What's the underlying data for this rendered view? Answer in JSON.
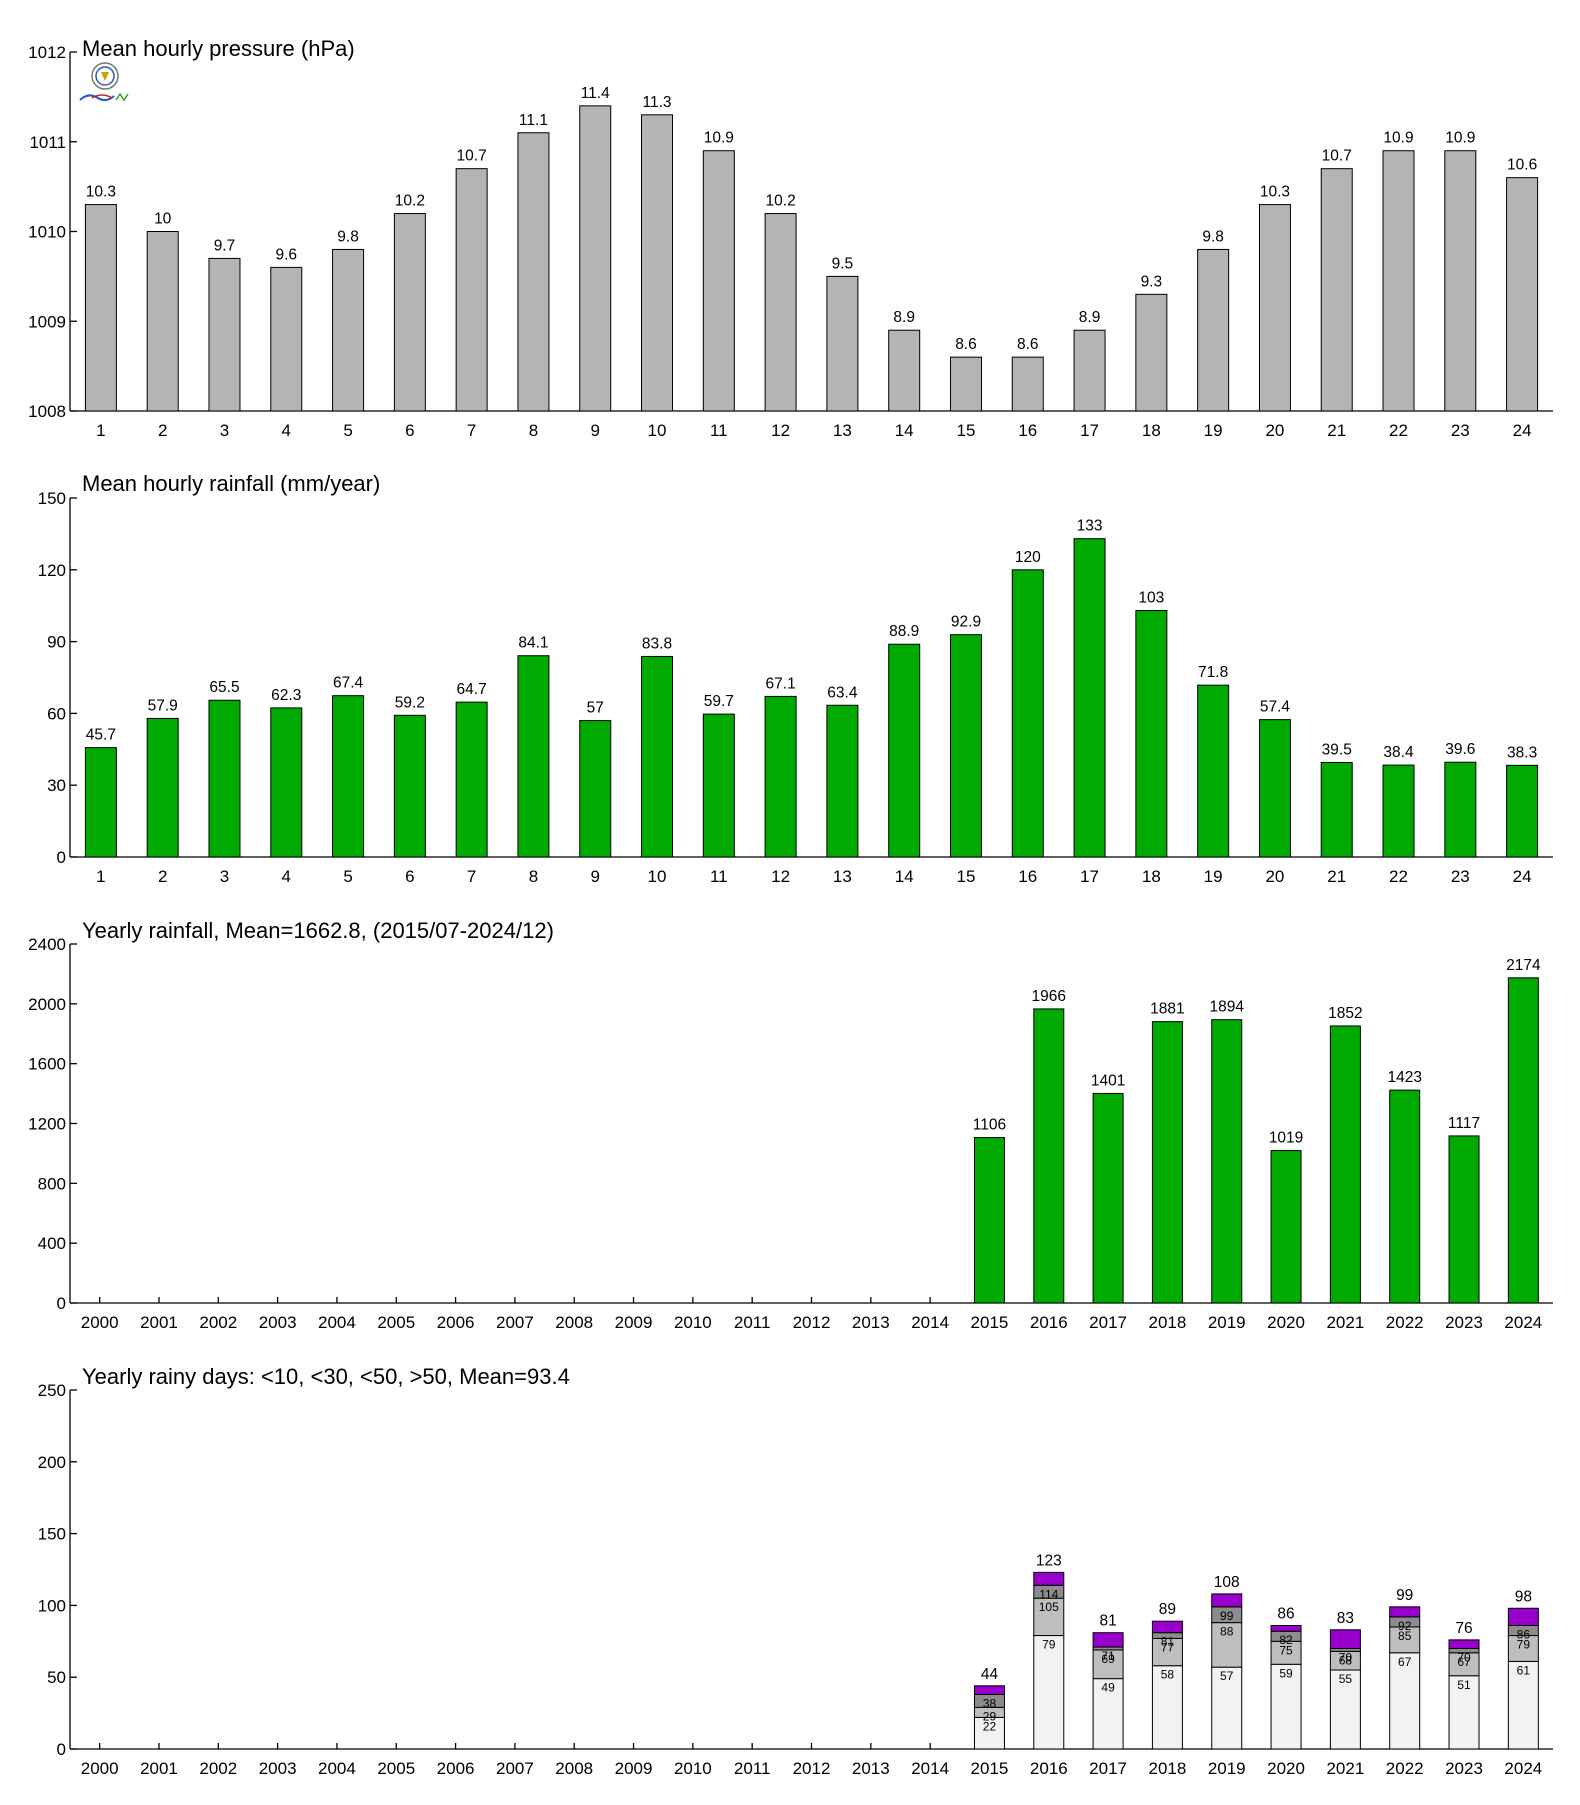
{
  "chart_data": [
    {
      "type": "bar",
      "title": "Mean hourly pressure (hPa)",
      "categories": [
        "1",
        "2",
        "3",
        "4",
        "5",
        "6",
        "7",
        "8",
        "9",
        "10",
        "11",
        "12",
        "13",
        "14",
        "15",
        "16",
        "17",
        "18",
        "19",
        "20",
        "21",
        "22",
        "23",
        "24"
      ],
      "values": [
        1010.3,
        1010.0,
        1009.7,
        1009.6,
        1009.8,
        1010.2,
        1010.7,
        1011.1,
        1011.4,
        1011.3,
        1010.9,
        1010.2,
        1009.5,
        1008.9,
        1008.6,
        1008.6,
        1008.9,
        1009.3,
        1009.8,
        1010.3,
        1010.7,
        1010.9,
        1010.9,
        1010.6
      ],
      "labels": [
        "10.3",
        "10",
        "9.7",
        "9.6",
        "9.8",
        "10.2",
        "10.7",
        "11.1",
        "11.4",
        "11.3",
        "10.9",
        "10.2",
        "9.5",
        "8.9",
        "8.6",
        "8.6",
        "8.9",
        "9.3",
        "9.8",
        "10.3",
        "10.7",
        "10.9",
        "10.9",
        "10.6"
      ],
      "ylim": [
        1008,
        1012
      ],
      "yticks": [
        "1008",
        "1009",
        "1010",
        "1011",
        "1012"
      ],
      "xlabel": "",
      "ylabel": "",
      "bar_color": "#b4b4b4",
      "grid": false
    },
    {
      "type": "bar",
      "title": "Mean hourly rainfall (mm/year)",
      "categories": [
        "1",
        "2",
        "3",
        "4",
        "5",
        "6",
        "7",
        "8",
        "9",
        "10",
        "11",
        "12",
        "13",
        "14",
        "15",
        "16",
        "17",
        "18",
        "19",
        "20",
        "21",
        "22",
        "23",
        "24"
      ],
      "values": [
        45.7,
        57.9,
        65.5,
        62.3,
        67.4,
        59.2,
        64.7,
        84.1,
        57,
        83.8,
        59.7,
        67.1,
        63.4,
        88.9,
        92.9,
        120,
        133,
        103,
        71.8,
        57.4,
        39.5,
        38.4,
        39.6,
        38.3
      ],
      "labels": [
        "45.7",
        "57.9",
        "65.5",
        "62.3",
        "67.4",
        "59.2",
        "64.7",
        "84.1",
        "57",
        "83.8",
        "59.7",
        "67.1",
        "63.4",
        "88.9",
        "92.9",
        "120",
        "133",
        "103",
        "71.8",
        "57.4",
        "39.5",
        "38.4",
        "39.6",
        "38.3"
      ],
      "ylim": [
        0,
        150
      ],
      "yticks": [
        "0",
        "30",
        "60",
        "90",
        "120",
        "150"
      ],
      "xlabel": "",
      "ylabel": "",
      "bar_color": "#00aa00",
      "grid": false
    },
    {
      "type": "bar",
      "title": "Yearly rainfall, Mean=1662.8, (2015/07-2024/12)",
      "categories": [
        "2000",
        "2001",
        "2002",
        "2003",
        "2004",
        "2005",
        "2006",
        "2007",
        "2008",
        "2009",
        "2010",
        "2011",
        "2012",
        "2013",
        "2014",
        "2015",
        "2016",
        "2017",
        "2018",
        "2019",
        "2020",
        "2021",
        "2022",
        "2023",
        "2024"
      ],
      "values": [
        null,
        null,
        null,
        null,
        null,
        null,
        null,
        null,
        null,
        null,
        null,
        null,
        null,
        null,
        null,
        1106,
        1966,
        1401,
        1881,
        1894,
        1019,
        1852,
        1423,
        1117,
        2174
      ],
      "labels": [
        "",
        "",
        "",
        "",
        "",
        "",
        "",
        "",
        "",
        "",
        "",
        "",
        "",
        "",
        "",
        "1106",
        "1966",
        "1401",
        "1881",
        "1894",
        "1019",
        "1852",
        "1423",
        "1117",
        "2174"
      ],
      "ylim": [
        0,
        2400
      ],
      "yticks": [
        "0",
        "400",
        "800",
        "1200",
        "1600",
        "2000",
        "2400"
      ],
      "xlabel": "",
      "ylabel": "",
      "bar_color": "#00aa00",
      "grid": false
    },
    {
      "type": "bar",
      "stacked": true,
      "title": "Yearly rainy days: <10, <30, <50, >50, Mean=93.4",
      "categories": [
        "2000",
        "2001",
        "2002",
        "2003",
        "2004",
        "2005",
        "2006",
        "2007",
        "2008",
        "2009",
        "2010",
        "2011",
        "2012",
        "2013",
        "2014",
        "2015",
        "2016",
        "2017",
        "2018",
        "2019",
        "2020",
        "2021",
        "2022",
        "2023",
        "2024"
      ],
      "cumulative": [
        null,
        null,
        null,
        null,
        null,
        null,
        null,
        null,
        null,
        null,
        null,
        null,
        null,
        null,
        null,
        [
          22,
          29,
          38,
          44
        ],
        [
          79,
          105,
          114,
          123
        ],
        [
          49,
          69,
          71,
          81
        ],
        [
          58,
          77,
          81,
          89
        ],
        [
          57,
          88,
          99,
          108
        ],
        [
          59,
          75,
          82,
          86
        ],
        [
          55,
          68,
          70,
          83
        ],
        [
          67,
          85,
          92,
          99
        ],
        [
          51,
          67,
          70,
          76
        ],
        [
          61,
          79,
          86,
          98
        ]
      ],
      "segment_labels": [
        null,
        null,
        null,
        null,
        null,
        null,
        null,
        null,
        null,
        null,
        null,
        null,
        null,
        null,
        null,
        [
          "22",
          "29",
          "38"
        ],
        [
          "79",
          "105",
          "114"
        ],
        [
          "49",
          "69",
          "71"
        ],
        [
          "58",
          "77",
          "81"
        ],
        [
          "57",
          "88",
          "99"
        ],
        [
          "59",
          "75",
          "82"
        ],
        [
          "55",
          "68",
          "70"
        ],
        [
          "67",
          "85",
          "92"
        ],
        [
          "51",
          "67",
          "70"
        ],
        [
          "61",
          "79",
          "86"
        ]
      ],
      "total_labels": [
        "",
        "",
        "",
        "",
        "",
        "",
        "",
        "",
        "",
        "",
        "",
        "",
        "",
        "",
        "",
        "44",
        "123",
        "81",
        "89",
        "108",
        "86",
        "83",
        "99",
        "76",
        "98"
      ],
      "ylim": [
        0,
        250
      ],
      "yticks": [
        "0",
        "50",
        "100",
        "150",
        "200",
        "250"
      ],
      "xlabel": "",
      "ylabel": "",
      "segment_colors": [
        "#f2f2f2",
        "#bebebe",
        "#8c8c8c",
        "#9900cc"
      ],
      "grid": false
    }
  ]
}
